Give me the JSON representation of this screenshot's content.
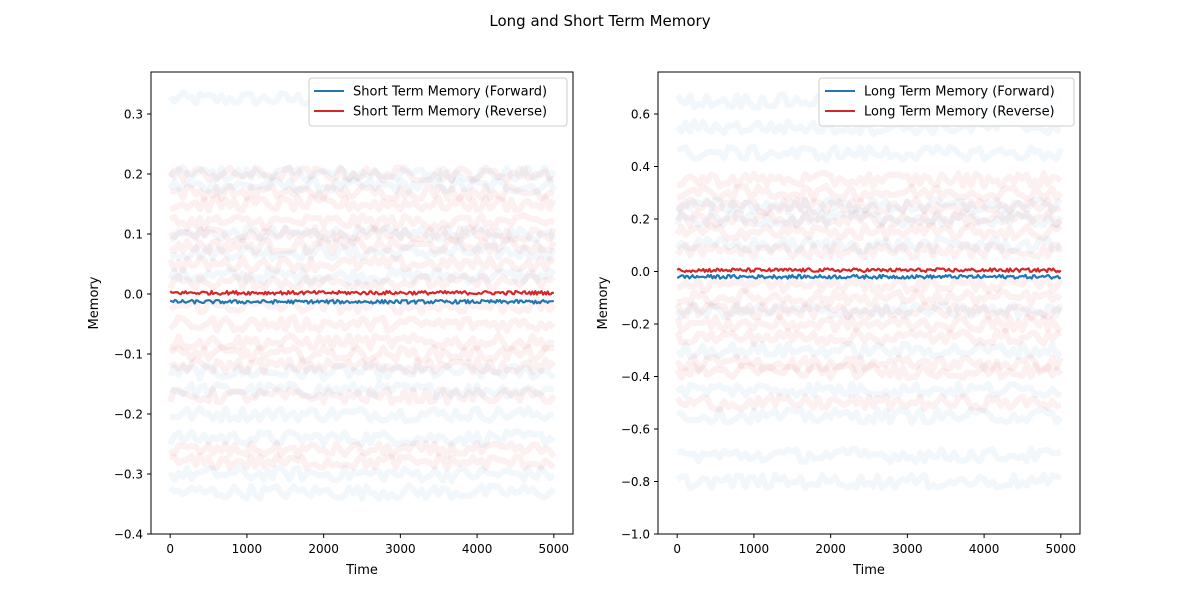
{
  "figure": {
    "title": "Long and Short Term Memory"
  },
  "colors": {
    "forward": "#1f77b4",
    "reverse": "#d62728",
    "axis": "#000000"
  },
  "chart_data": [
    {
      "type": "line",
      "xlabel": "Time",
      "ylabel": "Memory",
      "xlim": [
        -250,
        5250
      ],
      "ylim": [
        -0.4,
        0.37
      ],
      "xticks": [
        0,
        1000,
        2000,
        3000,
        4000,
        5000
      ],
      "yticks": [
        -0.4,
        -0.3,
        -0.2,
        -0.1,
        0.0,
        0.1,
        0.2,
        0.3
      ],
      "xtick_labels": [
        "0",
        "1000",
        "2000",
        "3000",
        "4000",
        "5000"
      ],
      "ytick_labels": [
        "−0.4",
        "−0.3",
        "−0.2",
        "−0.1",
        "0.0",
        "0.1",
        "0.2",
        "0.3"
      ],
      "legend_position": "upper-right",
      "grid": false,
      "series": [
        {
          "name": "Short Term Memory (Forward)",
          "color": "#1f77b4",
          "x": [
            0,
            5000
          ],
          "y": [
            -0.013,
            -0.013
          ]
        },
        {
          "name": "Short Term Memory (Reverse)",
          "color": "#d62728",
          "x": [
            0,
            5000
          ],
          "y": [
            0.002,
            0.002
          ]
        }
      ],
      "background_traces": {
        "x_range": [
          0,
          5000
        ],
        "forward_levels": [
          0.325,
          0.2,
          0.18,
          0.1,
          0.07,
          0.03,
          -0.13,
          -0.16,
          -0.2,
          -0.24,
          -0.3,
          -0.33
        ],
        "reverse_levels": [
          0.2,
          0.17,
          0.15,
          0.12,
          0.1,
          0.08,
          0.05,
          0.02,
          -0.02,
          -0.05,
          -0.08,
          -0.1,
          -0.12,
          -0.17,
          -0.26,
          -0.28
        ]
      }
    },
    {
      "type": "line",
      "xlabel": "Time",
      "ylabel": "Memory",
      "xlim": [
        -250,
        5250
      ],
      "ylim": [
        -1.0,
        0.76
      ],
      "xticks": [
        0,
        1000,
        2000,
        3000,
        4000,
        5000
      ],
      "yticks": [
        -1.0,
        -0.8,
        -0.6,
        -0.4,
        -0.2,
        0.0,
        0.2,
        0.4,
        0.6
      ],
      "xtick_labels": [
        "0",
        "1000",
        "2000",
        "3000",
        "4000",
        "5000"
      ],
      "ytick_labels": [
        "−1.0",
        "−0.8",
        "−0.6",
        "−0.4",
        "−0.2",
        "0.0",
        "0.2",
        "0.4",
        "0.6"
      ],
      "legend_position": "upper-right",
      "grid": false,
      "series": [
        {
          "name": "Long Term Memory (Forward)",
          "color": "#1f77b4",
          "x": [
            0,
            5000
          ],
          "y": [
            -0.02,
            -0.02
          ]
        },
        {
          "name": "Long Term Memory (Reverse)",
          "color": "#d62728",
          "x": [
            0,
            5000
          ],
          "y": [
            0.005,
            0.005
          ]
        }
      ],
      "background_traces": {
        "x_range": [
          0,
          5000
        ],
        "forward_levels": [
          0.65,
          0.55,
          0.45,
          0.25,
          0.2,
          0.1,
          -0.15,
          -0.3,
          -0.45,
          -0.55,
          -0.7,
          -0.8
        ],
        "reverse_levels": [
          0.35,
          0.3,
          0.25,
          0.2,
          0.15,
          0.08,
          -0.05,
          -0.1,
          -0.15,
          -0.2,
          -0.25,
          -0.35,
          -0.38,
          -0.5
        ]
      }
    }
  ]
}
